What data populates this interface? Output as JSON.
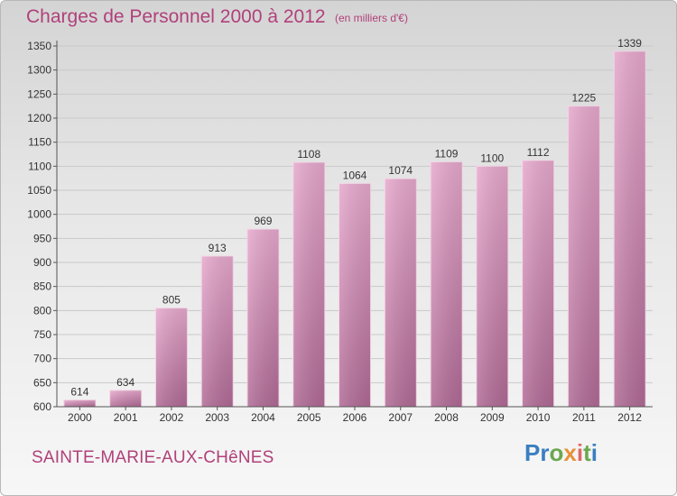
{
  "header": {
    "title": "Charges de Personnel 2000 à 2012",
    "subtitle": "(en milliers d'€)"
  },
  "footer": {
    "commune": "SAINTE-MARIE-AUX-CHêNES",
    "logo_letters": [
      {
        "ch": "P",
        "color": "#3a7fc1"
      },
      {
        "ch": "r",
        "color": "#3a7fc1"
      },
      {
        "ch": "o",
        "color": "#6aa84f"
      },
      {
        "ch": "x",
        "color": "#e69138"
      },
      {
        "ch": "i",
        "color": "#e06666"
      },
      {
        "ch": "t",
        "color": "#6aa84f"
      },
      {
        "ch": "i",
        "color": "#3a7fc1"
      }
    ]
  },
  "chart_data": {
    "type": "bar",
    "categories": [
      "2000",
      "2001",
      "2002",
      "2003",
      "2004",
      "2005",
      "2006",
      "2007",
      "2008",
      "2009",
      "2010",
      "2011",
      "2012"
    ],
    "values": [
      614,
      634,
      805,
      913,
      969,
      1108,
      1064,
      1074,
      1109,
      1100,
      1112,
      1225,
      1339
    ],
    "ylim": [
      600,
      1350
    ],
    "yticks": [
      600,
      650,
      700,
      750,
      800,
      850,
      900,
      950,
      1000,
      1050,
      1100,
      1150,
      1200,
      1250,
      1300,
      1350
    ],
    "grid": true,
    "bar_color": "#d98cb8",
    "xlabel": "",
    "ylabel": ""
  }
}
